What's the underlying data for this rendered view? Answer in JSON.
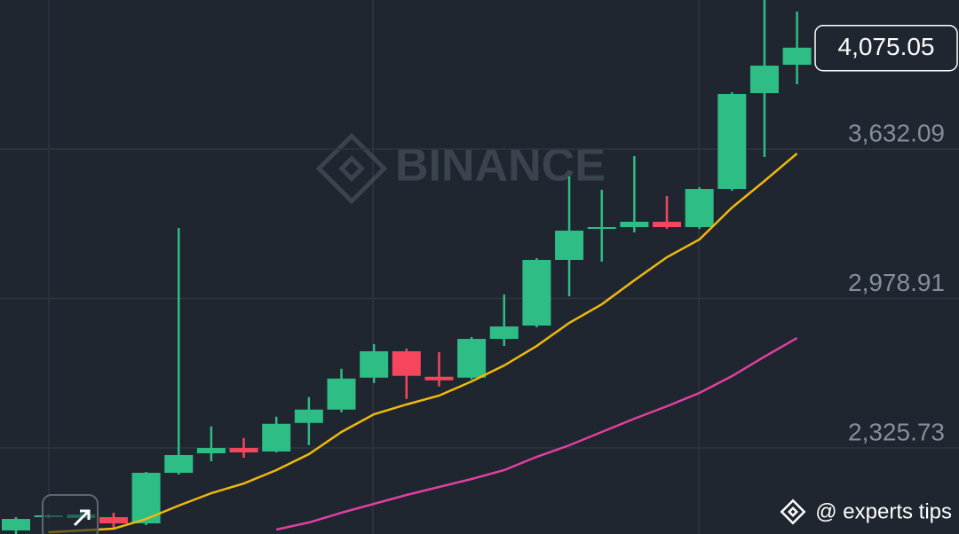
{
  "chart_data": {
    "type": "candlestick",
    "watermark": "BINANCE",
    "annotation": "@ experts tips",
    "categories": [
      null,
      null,
      null,
      null,
      null,
      null,
      null,
      null,
      null,
      null,
      null,
      null,
      null,
      null,
      null,
      null,
      null,
      null,
      null,
      null,
      null,
      null,
      null,
      null,
      null
    ],
    "open": [
      1965.3,
      2023.4,
      2019.5,
      2023.4,
      1996.3,
      2217.2,
      2302.5,
      2325.7,
      2310.2,
      2435.3,
      2493.5,
      2633.0,
      2748.3,
      2636.9,
      2633.0,
      2802.5,
      2860.7,
      3147.6,
      3283.2,
      3291.0,
      3314.3,
      3291.0,
      3457.7,
      3876.4,
      4000.4
    ],
    "high": [
      2023.4,
      2035.0,
      2042.8,
      2042.8,
      2221.1,
      3287.1,
      2419.8,
      2369.4,
      2462.4,
      2547.8,
      2671.8,
      2779.3,
      2759.9,
      2744.4,
      2810.3,
      2996.4,
      3155.3,
      3511.9,
      3453.8,
      3601.1,
      3426.7,
      3465.4,
      3880.2,
      4283.4,
      4233.0
    ],
    "low": [
      1949.8,
      2019.5,
      2015.6,
      1976.9,
      1988.5,
      2209.5,
      2267.6,
      2283.1,
      2306.4,
      2338.4,
      2481.8,
      2609.8,
      2540.0,
      2594.3,
      2625.3,
      2771.5,
      2852.9,
      2988.6,
      3139.8,
      3267.7,
      3283.2,
      3283.2,
      3450.0,
      3597.3,
      3915.1
    ],
    "close": [
      2015.6,
      2031.2,
      2035.0,
      1996.3,
      2217.2,
      2294.8,
      2325.7,
      2306.4,
      2431.4,
      2493.5,
      2629.1,
      2748.3,
      2640.8,
      2621.4,
      2802.5,
      2856.8,
      3147.6,
      3275.5,
      3291.0,
      3314.3,
      3291.0,
      3457.7,
      3872.5,
      3996.5,
      4075.05
    ],
    "up_color": "#2ebd85",
    "down_color": "#f6465d",
    "overlays": [
      {
        "color": "#f0b90b",
        "values": [
          null,
          1957.4,
          1965.3,
          1973.0,
          2015.6,
          2073.8,
          2128.1,
          2170.7,
          2228.9,
          2298.6,
          2395.6,
          2473.1,
          2515.8,
          2554.6,
          2616.4,
          2686.2,
          2771.5,
          2872.3,
          2953.7,
          3058.4,
          3159.2,
          3236.7,
          3376.3,
          3492.6,
          3612.8
        ]
      },
      {
        "color": "#e040a0",
        "values": [
          null,
          null,
          null,
          null,
          null,
          null,
          null,
          null,
          1969.1,
          2000.1,
          2042.8,
          2081.6,
          2120.3,
          2155.2,
          2190.1,
          2228.9,
          2287.0,
          2337.4,
          2395.6,
          2453.7,
          2508.0,
          2566.1,
          2639.7,
          2725.0,
          2806.3
        ]
      }
    ],
    "ylim": [
      1949.8,
      4283.4
    ],
    "yticks": [
      {
        "value": 2325.73,
        "label": "2,325.73"
      },
      {
        "value": 2978.91,
        "label": "2,978.91"
      },
      {
        "value": 3632.09,
        "label": "3,632.09"
      }
    ],
    "last_price": {
      "value": 4075.05,
      "label": "4,075.05"
    },
    "grid": true
  }
}
